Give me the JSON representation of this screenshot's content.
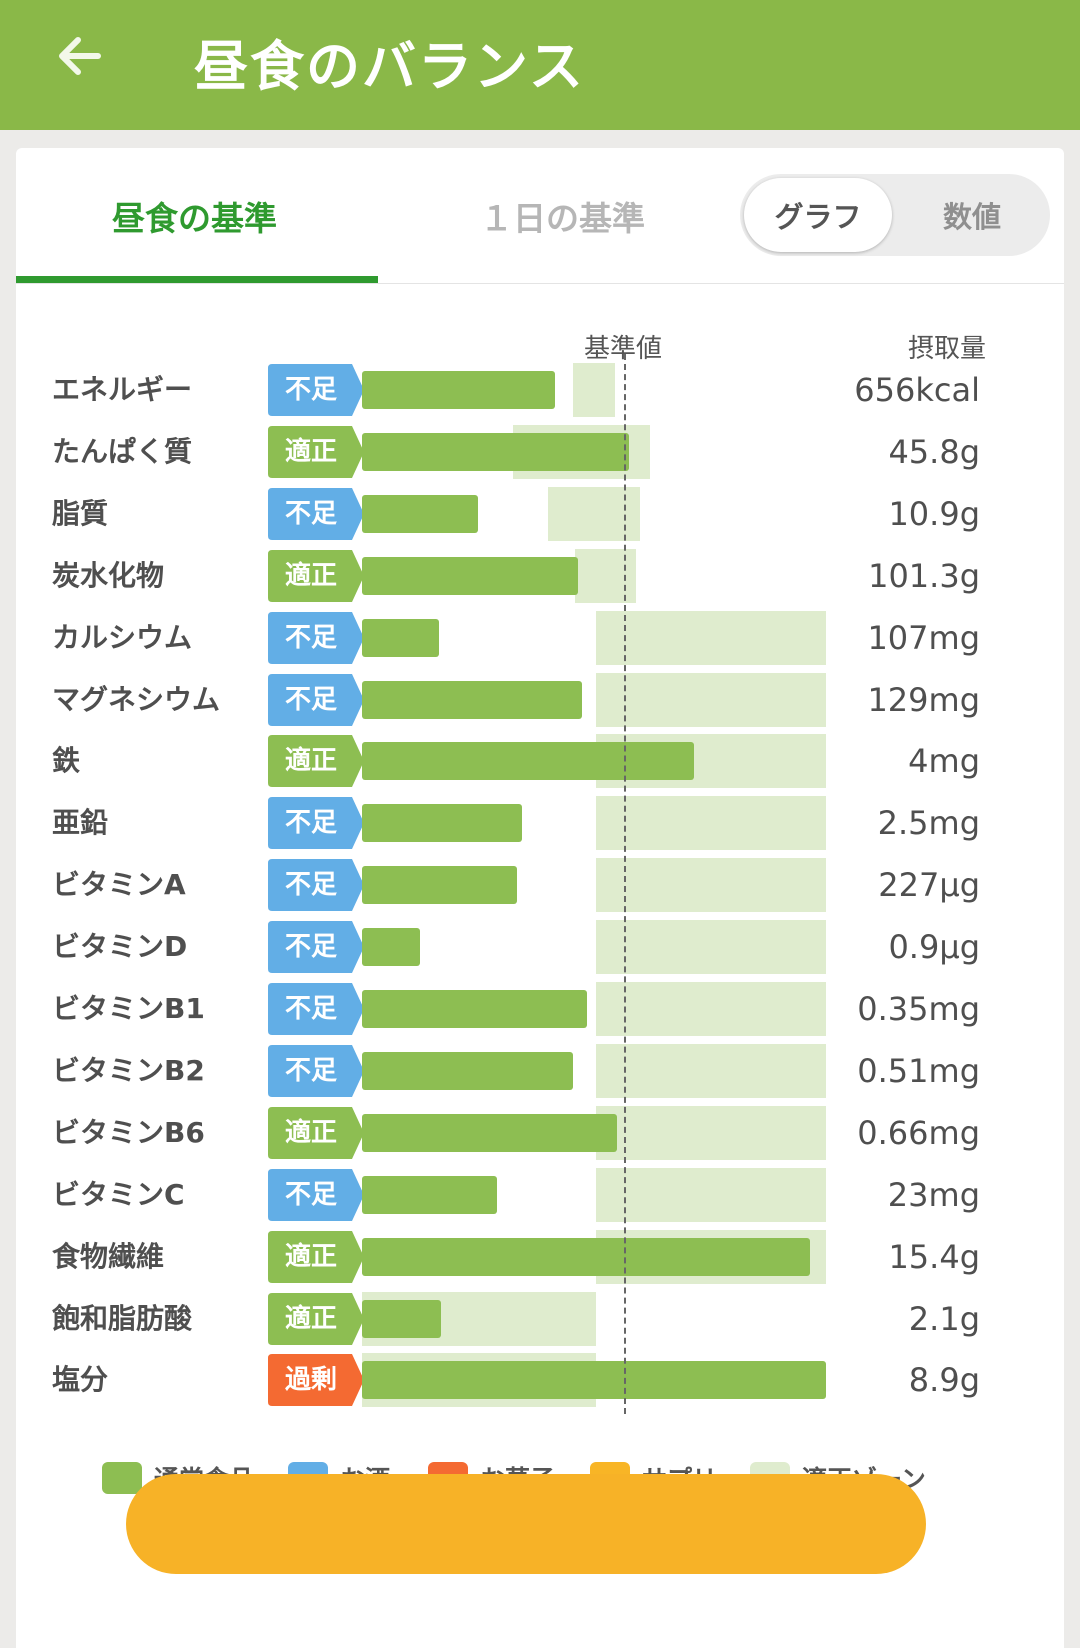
{
  "header": {
    "title": "昼食のバランス",
    "back_icon": "arrow-left-icon"
  },
  "tabs": [
    {
      "label": "昼食の基準",
      "selected": true
    },
    {
      "label": "１日の基準",
      "selected": false
    }
  ],
  "view_toggle": {
    "options": [
      "グラフ",
      "数値"
    ],
    "selected": "グラフ"
  },
  "column_headers": {
    "reference": "基準値",
    "intake": "摂取量"
  },
  "status_colors": {
    "不足": "#62aee6",
    "適正": "#8dbe52",
    "過剰": "#f46a32"
  },
  "rows": [
    {
      "name": "エネルギー",
      "status": "不足",
      "value": "656kcal",
      "bar": 0.415,
      "zone": [
        0.455,
        0.545
      ]
    },
    {
      "name": "たんぱく質",
      "status": "適正",
      "value": "45.8g",
      "bar": 0.575,
      "zone": [
        0.325,
        0.62
      ]
    },
    {
      "name": "脂質",
      "status": "不足",
      "value": "10.9g",
      "bar": 0.25,
      "zone": [
        0.4,
        0.6
      ]
    },
    {
      "name": "炭水化物",
      "status": "適正",
      "value": "101.3g",
      "bar": 0.465,
      "zone": [
        0.46,
        0.59
      ]
    },
    {
      "name": "カルシウム",
      "status": "不足",
      "value": "107mg",
      "bar": 0.165,
      "zone": [
        0.505,
        1.0
      ]
    },
    {
      "name": "マグネシウム",
      "status": "不足",
      "value": "129mg",
      "bar": 0.475,
      "zone": [
        0.505,
        1.0
      ]
    },
    {
      "name": "鉄",
      "status": "適正",
      "value": "4mg",
      "bar": 0.715,
      "zone": [
        0.505,
        1.0
      ]
    },
    {
      "name": "亜鉛",
      "status": "不足",
      "value": "2.5mg",
      "bar": 0.345,
      "zone": [
        0.505,
        1.0
      ]
    },
    {
      "name": "ビタミンA",
      "status": "不足",
      "value": "227µg",
      "bar": 0.335,
      "zone": [
        0.505,
        1.0
      ]
    },
    {
      "name": "ビタミンD",
      "status": "不足",
      "value": "0.9µg",
      "bar": 0.125,
      "zone": [
        0.505,
        1.0
      ]
    },
    {
      "name": "ビタミンB1",
      "status": "不足",
      "value": "0.35mg",
      "bar": 0.485,
      "zone": [
        0.505,
        1.0
      ]
    },
    {
      "name": "ビタミンB2",
      "status": "不足",
      "value": "0.51mg",
      "bar": 0.455,
      "zone": [
        0.505,
        1.0
      ]
    },
    {
      "name": "ビタミンB6",
      "status": "適正",
      "value": "0.66mg",
      "bar": 0.55,
      "zone": [
        0.505,
        1.0
      ]
    },
    {
      "name": "ビタミンC",
      "status": "不足",
      "value": "23mg",
      "bar": 0.29,
      "zone": [
        0.505,
        1.0
      ]
    },
    {
      "name": "食物繊維",
      "status": "適正",
      "value": "15.4g",
      "bar": 0.965,
      "zone": [
        0.505,
        1.0
      ]
    },
    {
      "name": "飽和脂肪酸",
      "status": "適正",
      "value": "2.1g",
      "bar": 0.17,
      "zone": [
        0.0,
        0.505
      ]
    },
    {
      "name": "塩分",
      "status": "過剰",
      "value": "8.9g",
      "bar": 1.0,
      "zone": [
        0.0,
        0.505
      ]
    }
  ],
  "legend": [
    {
      "label": "通常食品",
      "color": "#8dbe52"
    },
    {
      "label": "お酒",
      "color": "#62aee6"
    },
    {
      "label": "お菓子",
      "color": "#f46a32"
    },
    {
      "label": "サプリ",
      "color": "#f8b526"
    },
    {
      "label": "適正ゾーン",
      "color": "#dfecce"
    }
  ]
}
